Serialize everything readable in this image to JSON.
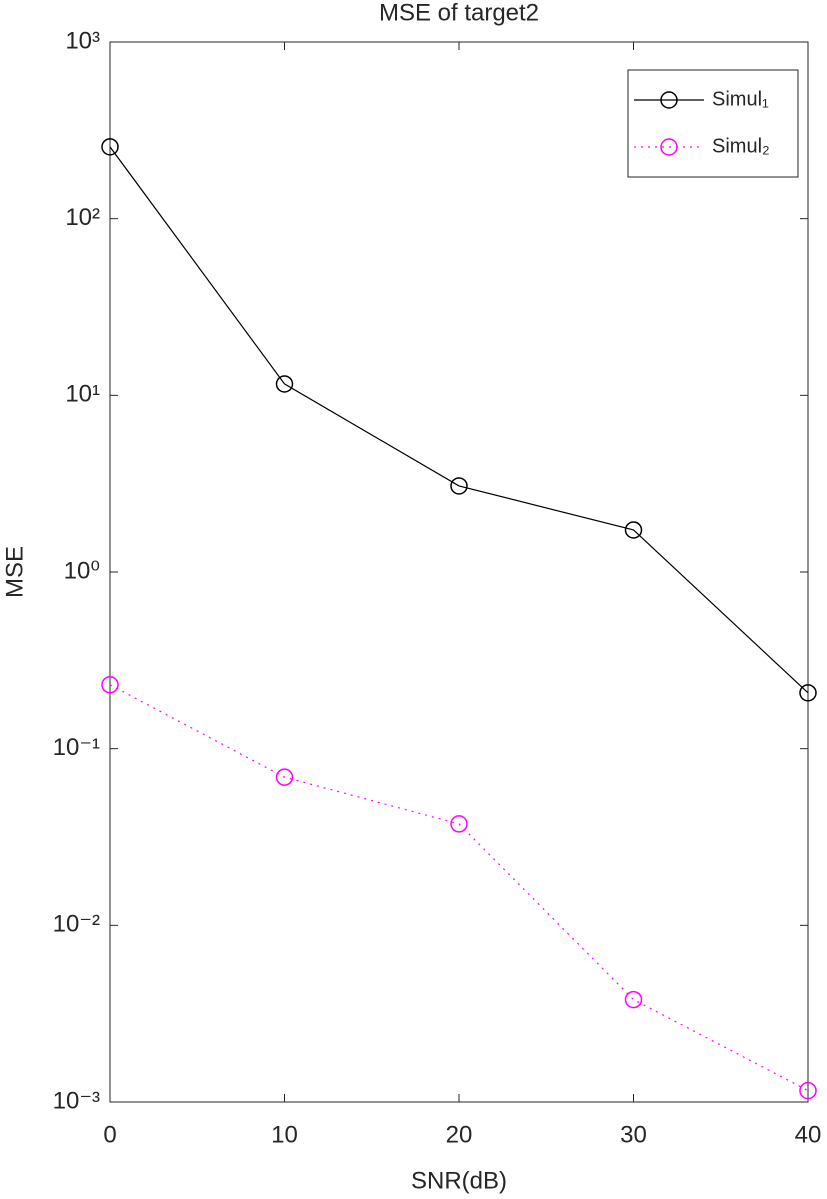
{
  "chart_data": {
    "type": "line",
    "title": "MSE of target2",
    "x_label": "SNR(dB)",
    "y_label": "MSE",
    "x": [
      0,
      10,
      20,
      30,
      40
    ],
    "series": [
      {
        "name": "Simul₁",
        "color": "#000000",
        "line_style": "solid",
        "marker": "circle",
        "values": [
          255,
          11.6,
          3.07,
          1.73,
          0.207
        ]
      },
      {
        "name": "Simul₂",
        "color": "#ff00ff",
        "line_style": "dotted",
        "marker": "circle",
        "values": [
          0.23,
          0.069,
          0.0375,
          0.0038,
          0.00116
        ]
      }
    ],
    "xlim": [
      0,
      40
    ],
    "xticks": [
      0,
      10,
      20,
      30,
      40
    ],
    "ylim": [
      0.001,
      1000
    ],
    "y_scale": "log",
    "yticks": [
      {
        "value": 0.001,
        "label": "10⁻³"
      },
      {
        "value": 0.01,
        "label": "10⁻²"
      },
      {
        "value": 0.1,
        "label": "10⁻¹"
      },
      {
        "value": 1,
        "label": "10⁰"
      },
      {
        "value": 10,
        "label": "10¹"
      },
      {
        "value": 100,
        "label": "10²"
      },
      {
        "value": 1000,
        "label": "10³"
      }
    ],
    "grid": false,
    "legend_position": "upper right"
  }
}
